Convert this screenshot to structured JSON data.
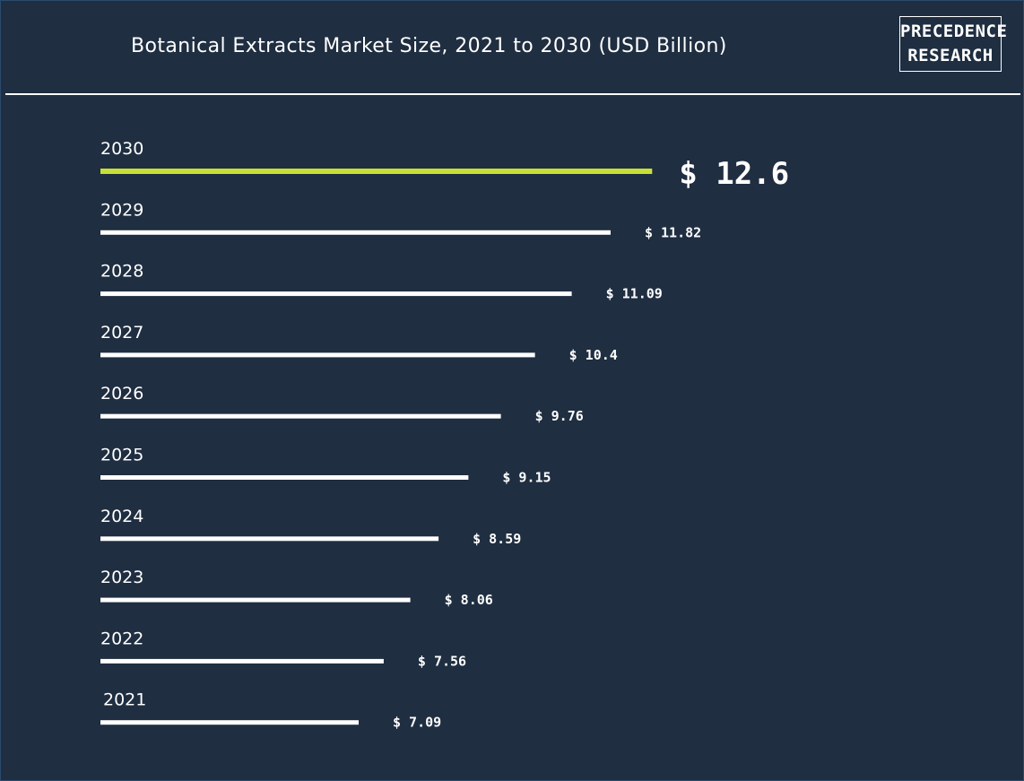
{
  "header": {
    "title": "Botanical Extracts Market Size, 2021 to 2030 (USD Billion)",
    "logo_line1": "PRECEDENCE",
    "logo_line2": "RESEARCH"
  },
  "colors": {
    "background": "#1f2e41",
    "bar": "#ffffff",
    "highlight": "#c8e035",
    "text": "#ffffff"
  },
  "chart_data": {
    "type": "bar",
    "orientation": "horizontal",
    "title": "Botanical Extracts Market Size, 2021 to 2030 (USD Billion)",
    "categories": [
      "2030",
      "2029",
      "2028",
      "2027",
      "2026",
      "2025",
      "2024",
      "2023",
      "2022",
      "2021"
    ],
    "values": [
      12.6,
      11.82,
      11.09,
      10.4,
      9.76,
      9.15,
      8.59,
      8.06,
      7.56,
      7.09
    ],
    "value_labels": [
      "$ 12.6",
      "$ 11.82",
      "$ 11.09",
      "$ 10.4",
      "$ 9.76",
      "$ 9.15",
      "$ 8.59",
      "$ 8.06",
      "$ 7.56",
      "$ 7.09"
    ],
    "highlight_category": "2030",
    "grid": false,
    "legend": "none"
  }
}
